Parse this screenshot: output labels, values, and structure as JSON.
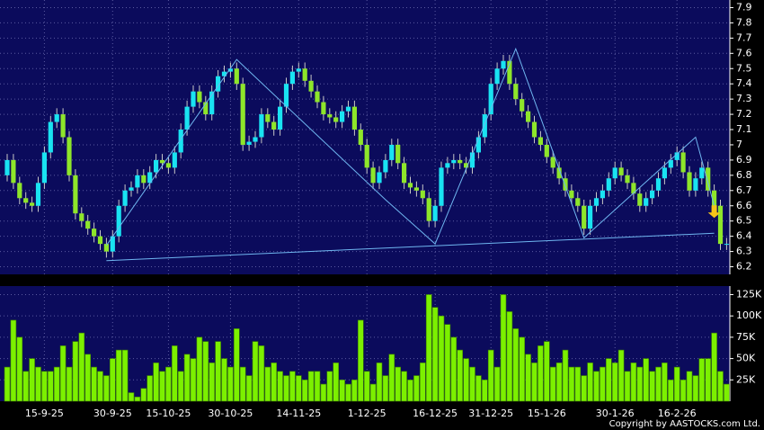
{
  "chart_data": [
    {
      "type": "candlestick",
      "categories": [
        null,
        null,
        null,
        null,
        null,
        null,
        "15-9-25",
        null,
        null,
        null,
        null,
        null,
        null,
        null,
        null,
        null,
        null,
        "30-9-25",
        null,
        null,
        null,
        null,
        null,
        null,
        null,
        null,
        "15-10-25",
        null,
        null,
        null,
        null,
        null,
        null,
        null,
        null,
        null,
        "30-10-25",
        null,
        null,
        null,
        null,
        null,
        null,
        null,
        null,
        null,
        null,
        "14-11-25",
        null,
        null,
        null,
        null,
        null,
        null,
        null,
        null,
        null,
        null,
        "1-12-25",
        null,
        null,
        null,
        null,
        null,
        null,
        null,
        null,
        null,
        null,
        "16-12-25",
        null,
        null,
        null,
        null,
        null,
        null,
        null,
        null,
        "31-12-25",
        null,
        null,
        null,
        null,
        null,
        null,
        null,
        null,
        "15-1-26",
        null,
        null,
        null,
        null,
        null,
        null,
        null,
        null,
        null,
        null,
        "30-1-26",
        null,
        null,
        null,
        null,
        null,
        null,
        null,
        null,
        null,
        "16-2-26",
        null,
        null,
        null,
        null,
        null,
        null,
        null,
        null
      ],
      "open": [
        6.8,
        6.9,
        6.75,
        6.65,
        6.62,
        6.6,
        6.75,
        6.95,
        7.15,
        7.2,
        7.05,
        6.8,
        6.55,
        6.5,
        6.45,
        6.4,
        6.35,
        6.3,
        6.4,
        6.6,
        6.7,
        6.72,
        6.8,
        6.75,
        6.82,
        6.9,
        6.88,
        6.85,
        6.95,
        7.1,
        7.25,
        7.35,
        7.28,
        7.2,
        7.35,
        7.45,
        7.48,
        7.5,
        7.4,
        7.0,
        7.02,
        7.05,
        7.2,
        7.15,
        7.1,
        7.25,
        7.4,
        7.48,
        7.5,
        7.42,
        7.35,
        7.28,
        7.2,
        7.18,
        7.15,
        7.22,
        7.25,
        7.1,
        7.0,
        6.85,
        6.75,
        6.82,
        6.9,
        7.0,
        6.88,
        6.75,
        6.72,
        6.7,
        6.65,
        6.5,
        6.6,
        6.85,
        6.88,
        6.9,
        6.88,
        6.85,
        6.95,
        7.05,
        7.2,
        7.4,
        7.5,
        7.55,
        7.4,
        7.3,
        7.22,
        7.15,
        7.05,
        7.0,
        6.92,
        6.85,
        6.78,
        6.7,
        6.65,
        6.6,
        6.45,
        6.6,
        6.65,
        6.7,
        6.78,
        6.85,
        6.8,
        6.75,
        6.68,
        6.6,
        6.65,
        6.7,
        6.78,
        6.85,
        6.9,
        6.95,
        6.82,
        6.7,
        6.78,
        6.85,
        6.7,
        6.6,
        6.35
      ],
      "high": [
        6.94,
        6.94,
        6.79,
        6.69,
        6.66,
        6.79,
        6.99,
        7.19,
        7.24,
        7.24,
        7.09,
        6.84,
        6.59,
        6.54,
        6.49,
        6.44,
        6.39,
        6.44,
        6.64,
        6.74,
        6.76,
        6.84,
        6.84,
        6.86,
        6.94,
        6.94,
        6.92,
        6.99,
        7.14,
        7.29,
        7.39,
        7.39,
        7.32,
        7.39,
        7.49,
        7.52,
        7.54,
        7.54,
        7.44,
        7.06,
        7.09,
        7.24,
        7.24,
        7.19,
        7.29,
        7.44,
        7.52,
        7.54,
        7.54,
        7.46,
        7.39,
        7.32,
        7.24,
        7.22,
        7.26,
        7.29,
        7.29,
        7.14,
        7.04,
        6.89,
        6.86,
        6.94,
        7.04,
        7.04,
        6.92,
        6.79,
        6.76,
        6.74,
        6.69,
        6.64,
        6.89,
        6.92,
        6.94,
        6.94,
        6.92,
        6.99,
        7.09,
        7.24,
        7.44,
        7.54,
        7.59,
        7.59,
        7.44,
        7.34,
        7.26,
        7.19,
        7.09,
        7.04,
        6.96,
        6.89,
        6.82,
        6.74,
        6.69,
        6.64,
        6.64,
        6.69,
        6.74,
        6.82,
        6.89,
        6.89,
        6.84,
        6.79,
        6.72,
        6.69,
        6.74,
        6.82,
        6.89,
        6.94,
        6.99,
        6.99,
        6.86,
        6.82,
        6.89,
        6.89,
        6.74,
        6.64,
        6.39
      ],
      "low": [
        6.76,
        6.71,
        6.61,
        6.58,
        6.56,
        6.56,
        6.71,
        6.91,
        7.11,
        7.01,
        6.76,
        6.51,
        6.46,
        6.41,
        6.36,
        6.31,
        6.26,
        6.26,
        6.36,
        6.56,
        6.66,
        6.68,
        6.71,
        6.71,
        6.78,
        6.84,
        6.81,
        6.81,
        6.91,
        7.06,
        7.21,
        7.24,
        7.16,
        7.16,
        7.31,
        7.41,
        7.44,
        7.36,
        6.96,
        6.96,
        6.98,
        7.01,
        7.11,
        7.06,
        7.06,
        7.21,
        7.36,
        7.44,
        7.38,
        7.31,
        7.24,
        7.16,
        7.14,
        7.11,
        7.11,
        7.18,
        7.06,
        6.96,
        6.81,
        6.71,
        6.71,
        6.78,
        6.86,
        6.84,
        6.71,
        6.68,
        6.66,
        6.61,
        6.46,
        6.46,
        6.56,
        6.81,
        6.84,
        6.84,
        6.81,
        6.81,
        6.91,
        7.01,
        7.16,
        7.36,
        7.46,
        7.36,
        7.26,
        7.18,
        7.11,
        7.01,
        6.96,
        6.88,
        6.81,
        6.74,
        6.66,
        6.61,
        6.56,
        6.41,
        6.41,
        6.56,
        6.61,
        6.66,
        6.74,
        6.76,
        6.71,
        6.64,
        6.56,
        6.56,
        6.61,
        6.66,
        6.74,
        6.81,
        6.86,
        6.78,
        6.66,
        6.66,
        6.74,
        6.66,
        6.56,
        6.31,
        6.31
      ],
      "close": [
        6.9,
        6.75,
        6.65,
        6.62,
        6.6,
        6.75,
        6.95,
        7.15,
        7.2,
        7.05,
        6.8,
        6.55,
        6.5,
        6.45,
        6.4,
        6.35,
        6.3,
        6.4,
        6.6,
        6.7,
        6.72,
        6.8,
        6.75,
        6.82,
        6.9,
        6.88,
        6.85,
        6.95,
        7.1,
        7.25,
        7.35,
        7.28,
        7.2,
        7.35,
        7.45,
        7.48,
        7.5,
        7.4,
        7.0,
        7.02,
        7.05,
        7.2,
        7.15,
        7.1,
        7.25,
        7.4,
        7.48,
        7.5,
        7.42,
        7.35,
        7.28,
        7.2,
        7.18,
        7.15,
        7.22,
        7.25,
        7.1,
        7.0,
        6.85,
        6.75,
        6.82,
        6.9,
        7.0,
        6.88,
        6.75,
        6.72,
        6.7,
        6.65,
        6.5,
        6.6,
        6.85,
        6.88,
        6.9,
        6.88,
        6.85,
        6.95,
        7.05,
        7.2,
        7.4,
        7.5,
        7.55,
        7.4,
        7.3,
        7.22,
        7.15,
        7.05,
        7.0,
        6.92,
        6.85,
        6.78,
        6.7,
        6.65,
        6.6,
        6.45,
        6.6,
        6.65,
        6.7,
        6.78,
        6.85,
        6.8,
        6.75,
        6.68,
        6.6,
        6.65,
        6.7,
        6.78,
        6.85,
        6.9,
        6.95,
        6.82,
        6.7,
        6.78,
        6.85,
        6.7,
        6.6,
        6.35,
        6.35
      ],
      "up_color": "#19e3f2",
      "down_color": "#8ee62a",
      "ylim": [
        6.15,
        7.95
      ],
      "yticks": [
        6.2,
        6.3,
        6.4,
        6.5,
        6.6,
        6.7,
        6.8,
        6.9,
        7,
        7.1,
        7.2,
        7.3,
        7.4,
        7.5,
        7.6,
        7.7,
        7.8,
        7.9
      ],
      "grid": true,
      "trendlines": [
        {
          "color": "#6fb6f0",
          "x": [
            16,
            37,
            61,
            69,
            82,
            93,
            111,
            114
          ],
          "values": [
            6.34,
            7.56,
            6.64,
            6.35,
            7.63,
            6.39,
            7.05,
            6.6
          ]
        },
        {
          "color": "#6fb6f0",
          "x": [
            16,
            114
          ],
          "values": [
            6.24,
            6.42
          ]
        }
      ],
      "arrow": {
        "index": 114,
        "value": 6.52,
        "color": "#f5c518"
      }
    },
    {
      "type": "bar",
      "values": [
        40000,
        95000,
        75000,
        35000,
        50000,
        40000,
        35000,
        35000,
        40000,
        65000,
        40000,
        70000,
        80000,
        55000,
        40000,
        35000,
        30000,
        50000,
        60000,
        60000,
        10000,
        5000,
        15000,
        30000,
        45000,
        35000,
        40000,
        65000,
        35000,
        55000,
        50000,
        75000,
        70000,
        45000,
        70000,
        50000,
        40000,
        85000,
        40000,
        30000,
        70000,
        65000,
        40000,
        45000,
        35000,
        30000,
        35000,
        30000,
        25000,
        35000,
        35000,
        20000,
        35000,
        45000,
        25000,
        20000,
        25000,
        95000,
        35000,
        20000,
        45000,
        30000,
        55000,
        40000,
        35000,
        25000,
        30000,
        45000,
        125000,
        110000,
        100000,
        90000,
        75000,
        60000,
        50000,
        40000,
        30000,
        25000,
        60000,
        40000,
        125000,
        105000,
        85000,
        75000,
        55000,
        45000,
        65000,
        70000,
        40000,
        45000,
        60000,
        40000,
        40000,
        30000,
        45000,
        35000,
        40000,
        50000,
        45000,
        60000,
        35000,
        45000,
        40000,
        50000,
        35000,
        40000,
        45000,
        25000,
        40000,
        25000,
        35000,
        30000,
        50000,
        50000,
        80000,
        35000,
        20000
      ],
      "color": "#7cf000",
      "ylim": [
        0,
        135000
      ],
      "yticks": [
        {
          "value": 25000,
          "label": "25K"
        },
        {
          "value": 50000,
          "label": "50K"
        },
        {
          "value": 75000,
          "label": "75K"
        },
        {
          "value": 100000,
          "label": "100K"
        },
        {
          "value": 125000,
          "label": "125K"
        }
      ],
      "grid": true
    }
  ],
  "copyright": "Copyright by AASTOCKS.com Ltd."
}
